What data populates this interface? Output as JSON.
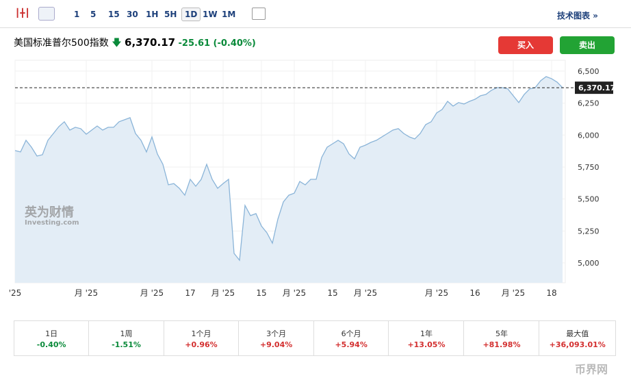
{
  "toolbar": {
    "intervals": [
      "1",
      "5",
      "15",
      "30",
      "1H",
      "5H",
      "1D",
      "1W",
      "1M"
    ],
    "link": "技术图表 »"
  },
  "header": {
    "name": "美国标准普尔500指数",
    "price": "6,370.17",
    "change": "-25.61",
    "change_percent": "(-0.40%)"
  },
  "buttons": {
    "buy": "买入",
    "sell": "卖出"
  },
  "watermark": {
    "cn": "英为财情",
    "en": "Investing.com",
    "corner": "币界网"
  },
  "chart_data": {
    "type": "area",
    "color": "#8ab4d8",
    "fill": "#e3edf6",
    "categories": [
      "'25",
      null,
      null,
      null,
      null,
      null,
      null,
      null,
      null,
      null,
      null,
      null,
      null,
      "月 '25",
      null,
      null,
      null,
      null,
      null,
      null,
      null,
      null,
      null,
      null,
      null,
      "月 '25",
      null,
      null,
      null,
      null,
      null,
      null,
      "17",
      null,
      null,
      null,
      null,
      null,
      "月 '25",
      null,
      null,
      null,
      null,
      null,
      null,
      "15",
      null,
      null,
      null,
      null,
      null,
      "月 '25",
      null,
      null,
      null,
      null,
      null,
      null,
      "15",
      null,
      null,
      null,
      null,
      null,
      "月 '25",
      null,
      null,
      null,
      null,
      null,
      null,
      null,
      null,
      null,
      null,
      null,
      null,
      "月 '25",
      null,
      null,
      null,
      null,
      null,
      null,
      "16",
      null,
      null,
      null,
      null,
      null,
      null,
      "月 '25",
      null,
      null,
      null,
      null,
      null,
      null,
      "18",
      null,
      null
    ],
    "values": [
      5879,
      5868,
      5959,
      5905,
      5836,
      5846,
      5959,
      6012,
      6066,
      6104,
      6039,
      6061,
      6050,
      6007,
      6039,
      6071,
      6039,
      6061,
      6061,
      6104,
      6120,
      6136,
      6012,
      5959,
      5868,
      5986,
      5852,
      5771,
      5611,
      5621,
      5584,
      5530,
      5654,
      5600,
      5654,
      5771,
      5654,
      5584,
      5621,
      5654,
      5075,
      5021,
      5450,
      5370,
      5386,
      5289,
      5236,
      5155,
      5343,
      5477,
      5530,
      5546,
      5637,
      5611,
      5654,
      5654,
      5825,
      5905,
      5932,
      5959,
      5932,
      5852,
      5814,
      5905,
      5921,
      5943,
      5959,
      5986,
      6012,
      6039,
      6050,
      6012,
      5986,
      5970,
      6012,
      6082,
      6104,
      6173,
      6200,
      6264,
      6227,
      6254,
      6243,
      6264,
      6280,
      6307,
      6318,
      6350,
      6371,
      6371,
      6361,
      6307,
      6254,
      6318,
      6361,
      6371,
      6425,
      6457,
      6441,
      6414,
      6370.17
    ],
    "ylim": [
      4845,
      6585
    ],
    "yticks": [
      {
        "value": 5000,
        "label": "5,000"
      },
      {
        "value": 5250,
        "label": "5,250"
      },
      {
        "value": 5500,
        "label": "5,500"
      },
      {
        "value": 5750,
        "label": "5,750"
      },
      {
        "value": 6000,
        "label": "6,000"
      },
      {
        "value": 6250,
        "label": "6,250"
      },
      {
        "value": 6500,
        "label": "6,500"
      }
    ],
    "last_value": {
      "value": 6370.17,
      "label": "6,370.17"
    },
    "grid": true
  },
  "performance": [
    {
      "period": "1日",
      "change": "-0.40%",
      "color": "#0a8a3a"
    },
    {
      "period": "1周",
      "change": "-1.51%",
      "color": "#0a8a3a"
    },
    {
      "period": "1个月",
      "change": "+0.96%",
      "color": "#d32f2f"
    },
    {
      "period": "3个月",
      "change": "+9.04%",
      "color": "#d32f2f"
    },
    {
      "period": "6个月",
      "change": "+5.94%",
      "color": "#d32f2f"
    },
    {
      "period": "1年",
      "change": "+13.05%",
      "color": "#d32f2f"
    },
    {
      "period": "5年",
      "change": "+81.98%",
      "color": "#d32f2f"
    },
    {
      "period": "最大值",
      "change": "+36,093.01%",
      "color": "#d32f2f"
    }
  ]
}
